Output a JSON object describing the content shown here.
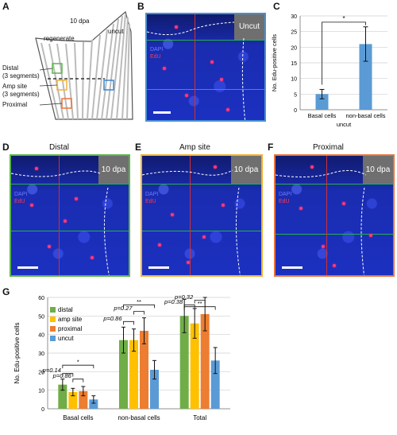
{
  "panel_labels": {
    "a": "A",
    "b": "B",
    "c": "C",
    "d": "D",
    "e": "E",
    "f": "F",
    "g": "G"
  },
  "schematic": {
    "timepoint": "10 dpa",
    "regenerate": "regenerate",
    "uncut": "uncut",
    "distal": "Distal",
    "distal_sub": "(3 segments)",
    "amp": "Amp site",
    "amp_sub": "(3 segments)",
    "proximal": "Proximal",
    "box_colors": {
      "distal": "#5ab54a",
      "amp": "#f2b132",
      "proximal": "#e8743b",
      "uncut": "#3a86d0"
    }
  },
  "stain": {
    "dapi": "DAPI",
    "edu": "EdU"
  },
  "panel_b": {
    "tag": "Uncut",
    "border": "#4a90d0"
  },
  "panel_d": {
    "title": "Distal",
    "tag": "10 dpa",
    "border": "#5ab54a"
  },
  "panel_e": {
    "title": "Amp site",
    "tag": "10 dpa",
    "border": "#f2b132"
  },
  "panel_f": {
    "title": "Proximal",
    "tag": "10 dpa",
    "border": "#e8743b"
  },
  "chart_data": [
    {
      "type": "bar",
      "panel": "C",
      "categories": [
        "Basal cells",
        "non-basal cells"
      ],
      "group_label": "uncut",
      "values": [
        5,
        21
      ],
      "errors": [
        1.5,
        5.5
      ],
      "ylabel": "No. Edu-positive cells",
      "ylim": [
        0,
        30
      ],
      "yticks": [
        0,
        5,
        10,
        15,
        20,
        25,
        30
      ],
      "color": "#5a9bd5",
      "significance": [
        {
          "pair": [
            0,
            1
          ],
          "label": "*"
        }
      ],
      "grid": true
    },
    {
      "type": "bar",
      "panel": "G",
      "categories": [
        "Basal cells",
        "non-basal cells",
        "Total"
      ],
      "ylabel": "No. Edu-positive cells",
      "ylim": [
        0,
        60
      ],
      "yticks": [
        0,
        10,
        20,
        30,
        40,
        50,
        60
      ],
      "legend_position": "top-left",
      "series": [
        {
          "name": "distal",
          "color": "#70ad47",
          "values": [
            13,
            37,
            50
          ],
          "errors": [
            3,
            7,
            9
          ]
        },
        {
          "name": "amp site",
          "color": "#ffc000",
          "values": [
            9,
            37,
            46
          ],
          "errors": [
            2,
            6,
            8
          ]
        },
        {
          "name": "proximal",
          "color": "#ed7d31",
          "values": [
            9.5,
            42,
            51
          ],
          "errors": [
            2.5,
            7,
            9
          ]
        },
        {
          "name": "uncut",
          "color": "#5b9bd5",
          "values": [
            5,
            21,
            26
          ],
          "errors": [
            2,
            5,
            7
          ]
        }
      ],
      "annotations": [
        {
          "group": 0,
          "text": "p=0.14",
          "pair": [
            0,
            1
          ]
        },
        {
          "group": 0,
          "text": "*",
          "pair": [
            0,
            3
          ]
        },
        {
          "group": 0,
          "text": "p=0.86",
          "pair": [
            1,
            2
          ]
        },
        {
          "group": 1,
          "text": "p=0.86",
          "pair": [
            0,
            1
          ]
        },
        {
          "group": 1,
          "text": "p=0.27",
          "pair": [
            1,
            2
          ]
        },
        {
          "group": 1,
          "text": "**",
          "pair": [
            0,
            3
          ]
        },
        {
          "group": 2,
          "text": "p=0.38",
          "pair": [
            0,
            1
          ]
        },
        {
          "group": 2,
          "text": "p=0.32",
          "pair": [
            1,
            2
          ]
        },
        {
          "group": 2,
          "text": "**",
          "pair": [
            0,
            3
          ]
        }
      ],
      "grid": true
    }
  ]
}
